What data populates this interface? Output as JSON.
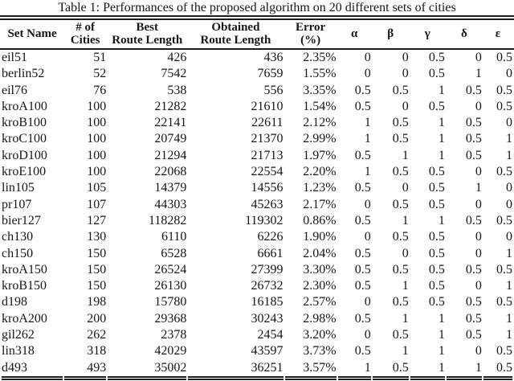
{
  "title": "Table 1: Performances of the proposed algorithm on 20 different sets of cities",
  "table": {
    "columns": [
      {
        "id": "set-name",
        "line1": "Set Name",
        "line2": ""
      },
      {
        "id": "num-cities",
        "line1": "# of",
        "line2": "Cities"
      },
      {
        "id": "best-route-length",
        "line1": "Best",
        "line2": "Route Length"
      },
      {
        "id": "obtained-route-length",
        "line1": "Obtained",
        "line2": "Route Length"
      },
      {
        "id": "error-pct",
        "line1": "Error",
        "line2": "(%)"
      },
      {
        "id": "alpha",
        "line1": "α",
        "line2": ""
      },
      {
        "id": "beta",
        "line1": "β",
        "line2": ""
      },
      {
        "id": "gamma",
        "line1": "γ",
        "line2": ""
      },
      {
        "id": "delta",
        "line1": "δ",
        "line2": ""
      },
      {
        "id": "epsilon",
        "line1": "ε",
        "line2": ""
      }
    ],
    "rows": [
      [
        "eil51",
        "51",
        "426",
        "436",
        "2.35%",
        "0",
        "0",
        "0.5",
        "0",
        "0.5"
      ],
      [
        "berlin52",
        "52",
        "7542",
        "7659",
        "1.55%",
        "0",
        "0",
        "0.5",
        "1",
        "0"
      ],
      [
        "eil76",
        "76",
        "538",
        "556",
        "3.35%",
        "0.5",
        "0.5",
        "1",
        "0.5",
        "0.5"
      ],
      [
        "kroA100",
        "100",
        "21282",
        "21610",
        "1.54%",
        "0.5",
        "0",
        "0.5",
        "0",
        "0.5"
      ],
      [
        "kroB100",
        "100",
        "22141",
        "22611",
        "2.12%",
        "1",
        "0.5",
        "1",
        "0.5",
        "0"
      ],
      [
        "kroC100",
        "100",
        "20749",
        "21370",
        "2.99%",
        "1",
        "0.5",
        "1",
        "0.5",
        "1"
      ],
      [
        "kroD100",
        "100",
        "21294",
        "21713",
        "1.97%",
        "0.5",
        "1",
        "1",
        "0.5",
        "1"
      ],
      [
        "kroE100",
        "100",
        "22068",
        "22554",
        "2.20%",
        "1",
        "0.5",
        "0.5",
        "0",
        "0.5"
      ],
      [
        "lin105",
        "105",
        "14379",
        "14556",
        "1.23%",
        "0.5",
        "0",
        "0.5",
        "1",
        "0"
      ],
      [
        "pr107",
        "107",
        "44303",
        "45263",
        "2.17%",
        "0",
        "0.5",
        "0.5",
        "0",
        "0"
      ],
      [
        "bier127",
        "127",
        "118282",
        "119302",
        "0.86%",
        "0.5",
        "1",
        "1",
        "0.5",
        "0.5"
      ],
      [
        "ch130",
        "130",
        "6110",
        "6226",
        "1.90%",
        "0",
        "0.5",
        "0.5",
        "0",
        "0"
      ],
      [
        "ch150",
        "150",
        "6528",
        "6661",
        "2.04%",
        "0.5",
        "0",
        "0.5",
        "0",
        "1"
      ],
      [
        "kroA150",
        "150",
        "26524",
        "27399",
        "3.30%",
        "0.5",
        "0.5",
        "0.5",
        "0.5",
        "0.5"
      ],
      [
        "kroB150",
        "150",
        "26130",
        "26732",
        "2.30%",
        "0.5",
        "1",
        "0.5",
        "0",
        "1"
      ],
      [
        "d198",
        "198",
        "15780",
        "16185",
        "2.57%",
        "0",
        "0.5",
        "0.5",
        "0.5",
        "0.5"
      ],
      [
        "kroA200",
        "200",
        "29368",
        "30243",
        "2.98%",
        "0.5",
        "1",
        "1",
        "0.5",
        "1"
      ],
      [
        "gil262",
        "262",
        "2378",
        "2454",
        "3.20%",
        "0",
        "0.5",
        "1",
        "0.5",
        "1"
      ],
      [
        "lin318",
        "318",
        "42029",
        "43597",
        "3.73%",
        "0.5",
        "1",
        "1",
        "0",
        "0.5"
      ],
      [
        "d493",
        "493",
        "35002",
        "36251",
        "3.57%",
        "1",
        "0.5",
        "1",
        "1",
        "0.5"
      ]
    ]
  },
  "rule_color": "#1c1c1c"
}
